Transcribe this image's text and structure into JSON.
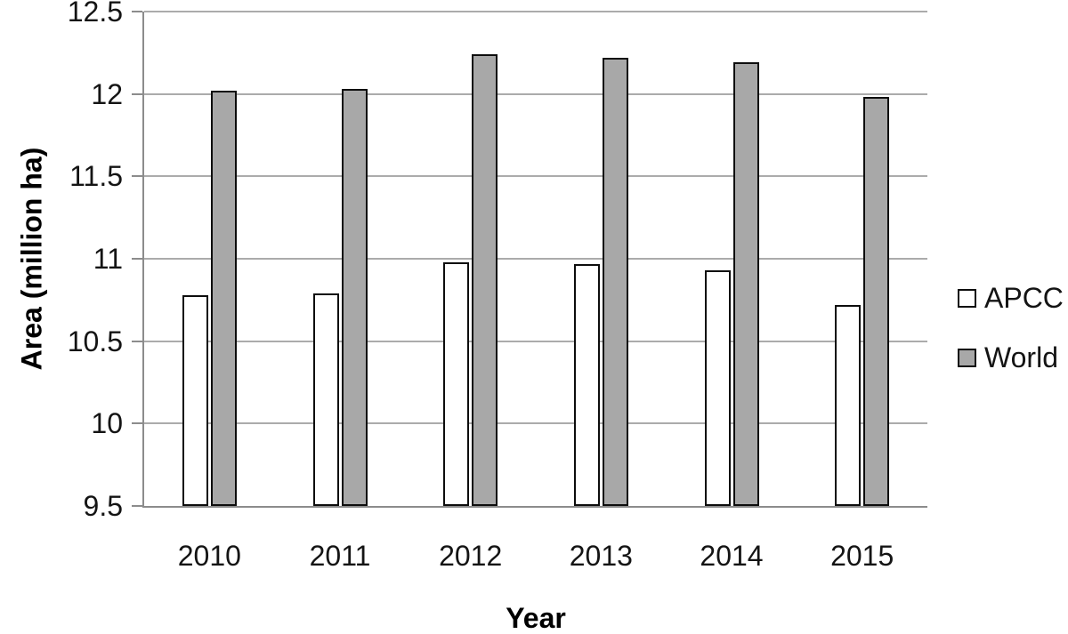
{
  "figure": {
    "background": "#ffffff",
    "grid_color": "#ababab",
    "axis_color": "#8c8c8c",
    "text_color": "#141414"
  },
  "chart_data": {
    "type": "bar",
    "title": "",
    "xlabel": "Year",
    "ylabel": "Area (million ha)",
    "categories": [
      "2010",
      "2011",
      "2012",
      "2013",
      "2014",
      "2015"
    ],
    "series": [
      {
        "name": "APCC",
        "fill": "#ffffff",
        "border": "#0d0d0d",
        "values": [
          10.78,
          10.79,
          10.98,
          10.97,
          10.93,
          10.72
        ]
      },
      {
        "name": "World",
        "fill": "#a8a8a8",
        "border": "#0d0d0d",
        "values": [
          12.02,
          12.03,
          12.24,
          12.22,
          12.19,
          11.98
        ]
      }
    ],
    "ylim": [
      9.5,
      12.5
    ],
    "ytick_step": 0.5,
    "ytick_labels": [
      "9.5",
      "10",
      "10.5",
      "11",
      "11.5",
      "12",
      "12.5"
    ],
    "grid": true,
    "legend_position": "right"
  }
}
